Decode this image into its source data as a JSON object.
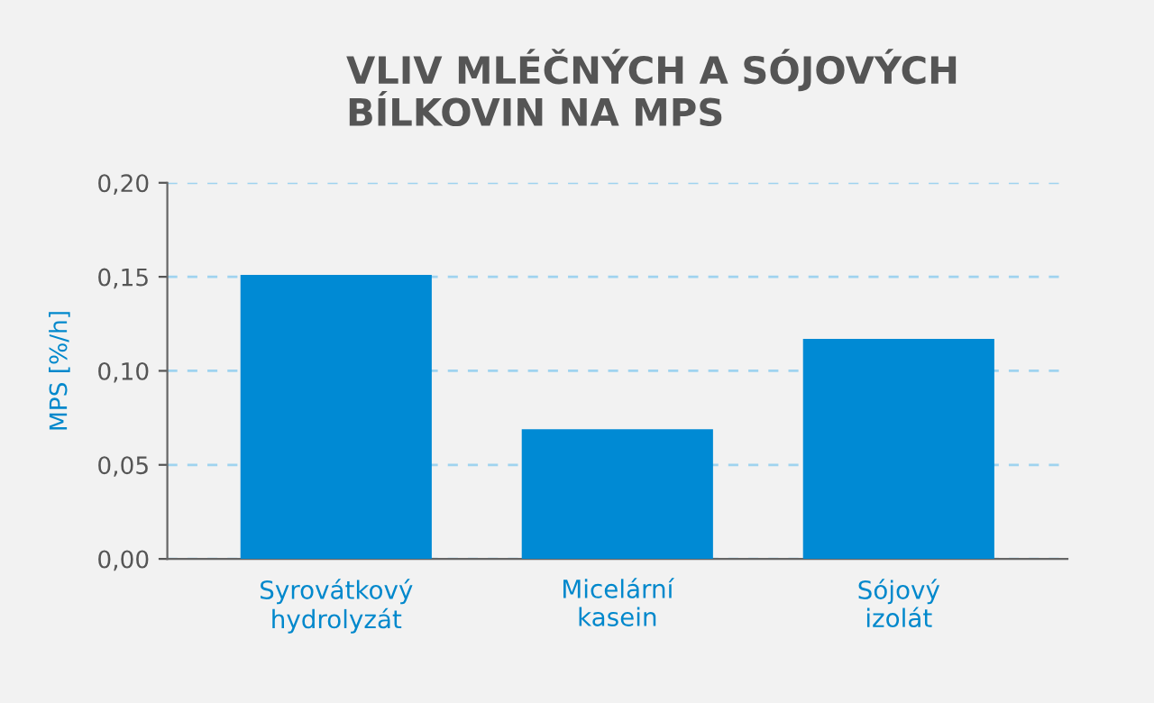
{
  "chart_data": {
    "type": "bar",
    "title": "VLIV MLÉČNÝCH A SÓJOVÝCH\nBÍLKOVIN NA MPS",
    "ylabel": "MPS [%/h]",
    "categories": [
      "Syrovátkový\nhydrolyzát",
      "Micelární\nkasein",
      "Sójový\nizolát"
    ],
    "values": [
      0.151,
      0.069,
      0.117
    ],
    "color": "#008ad4",
    "ylim": [
      0,
      0.2
    ],
    "yticks": [
      {
        "value": 0,
        "label": "0,00"
      },
      {
        "value": 0.05,
        "label": "0,05"
      },
      {
        "value": 0.1,
        "label": "0,10"
      },
      {
        "value": 0.15,
        "label": "0,15"
      },
      {
        "value": 0.2,
        "label": "0,20"
      }
    ],
    "grid": "y"
  }
}
